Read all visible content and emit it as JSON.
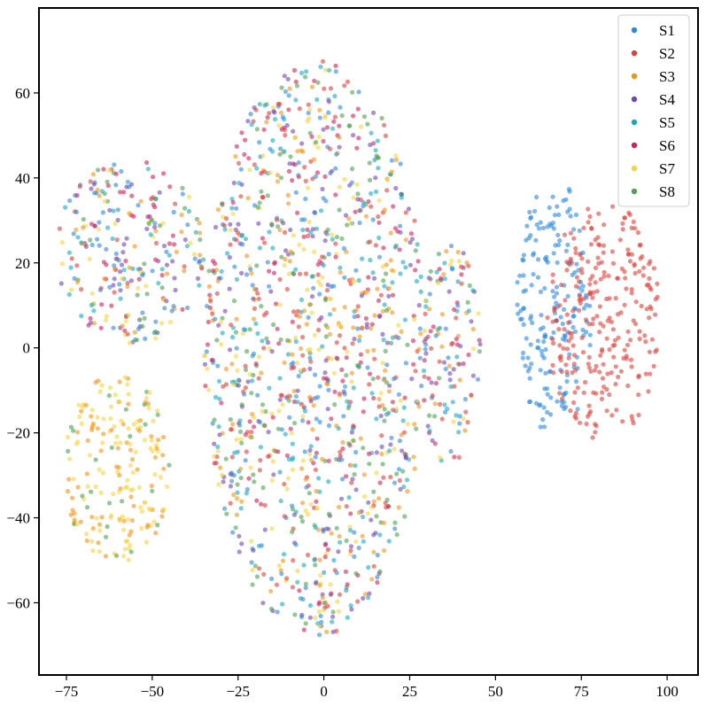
{
  "chart_data": {
    "type": "scatter",
    "title": "",
    "xlabel": "",
    "ylabel": "",
    "xlim": [
      -83,
      109
    ],
    "ylim": [
      -77,
      80
    ],
    "x_ticks": [
      -75,
      -50,
      -25,
      0,
      25,
      50,
      75,
      100
    ],
    "y_ticks": [
      -60,
      -40,
      -20,
      0,
      20,
      40,
      60
    ],
    "x_tick_labels": [
      "−75",
      "−50",
      "−25",
      "0",
      "25",
      "50",
      "75",
      "100"
    ],
    "y_tick_labels": [
      "−60",
      "−40",
      "−20",
      "0",
      "20",
      "40",
      "60"
    ],
    "grid": false,
    "legend_position": "top-right",
    "series": [
      {
        "name": "S1",
        "color": "#2b88e0",
        "marker": "circle"
      },
      {
        "name": "S2",
        "color": "#e04039",
        "marker": "circle"
      },
      {
        "name": "S3",
        "color": "#f59212",
        "marker": "circle"
      },
      {
        "name": "S4",
        "color": "#7445b5",
        "marker": "circle"
      },
      {
        "name": "S5",
        "color": "#16aac1",
        "marker": "circle"
      },
      {
        "name": "S6",
        "color": "#d41f59",
        "marker": "circle"
      },
      {
        "name": "S7",
        "color": "#f8d33a",
        "marker": "circle"
      },
      {
        "name": "S8",
        "color": "#4ba24f",
        "marker": "circle"
      }
    ],
    "clusters": [
      {
        "name": "main-mass",
        "series_mix": [
          1,
          1,
          1,
          1,
          1,
          1,
          1,
          1
        ],
        "region": {
          "x_min": -35,
          "x_max": 30,
          "y_min": -68,
          "y_max": 68,
          "shape": "blob"
        }
      },
      {
        "name": "upper-left-arm",
        "series_mix": [
          1,
          1,
          1,
          1,
          1,
          1,
          1,
          1
        ],
        "region": {
          "x_min": -78,
          "x_max": -35,
          "y_min": 0,
          "y_max": 45,
          "shape": "blob"
        }
      },
      {
        "name": "lower-left-yellow-orange",
        "series_mix": [
          0,
          0,
          3,
          0,
          0,
          0,
          4,
          1
        ],
        "region": {
          "x_min": -76,
          "x_max": -45,
          "y_min": -52,
          "y_max": -5,
          "shape": "blob"
        }
      },
      {
        "name": "right-edge-strip",
        "series_mix": [
          1,
          1,
          1,
          1,
          1,
          1,
          1,
          1
        ],
        "region": {
          "x_min": 28,
          "x_max": 46,
          "y_min": -28,
          "y_max": 25,
          "shape": "blob"
        }
      },
      {
        "name": "right-island-blue",
        "series_mix": [
          1,
          0,
          0,
          0,
          0,
          0,
          0,
          0
        ],
        "region": {
          "x_min": 56,
          "x_max": 78,
          "y_min": -22,
          "y_max": 40,
          "shape": "blob"
        }
      },
      {
        "name": "right-island-red",
        "series_mix": [
          0,
          1,
          0,
          0,
          0,
          0,
          0,
          0
        ],
        "region": {
          "x_min": 65,
          "x_max": 98,
          "y_min": -22,
          "y_max": 35,
          "shape": "blob"
        }
      }
    ]
  }
}
